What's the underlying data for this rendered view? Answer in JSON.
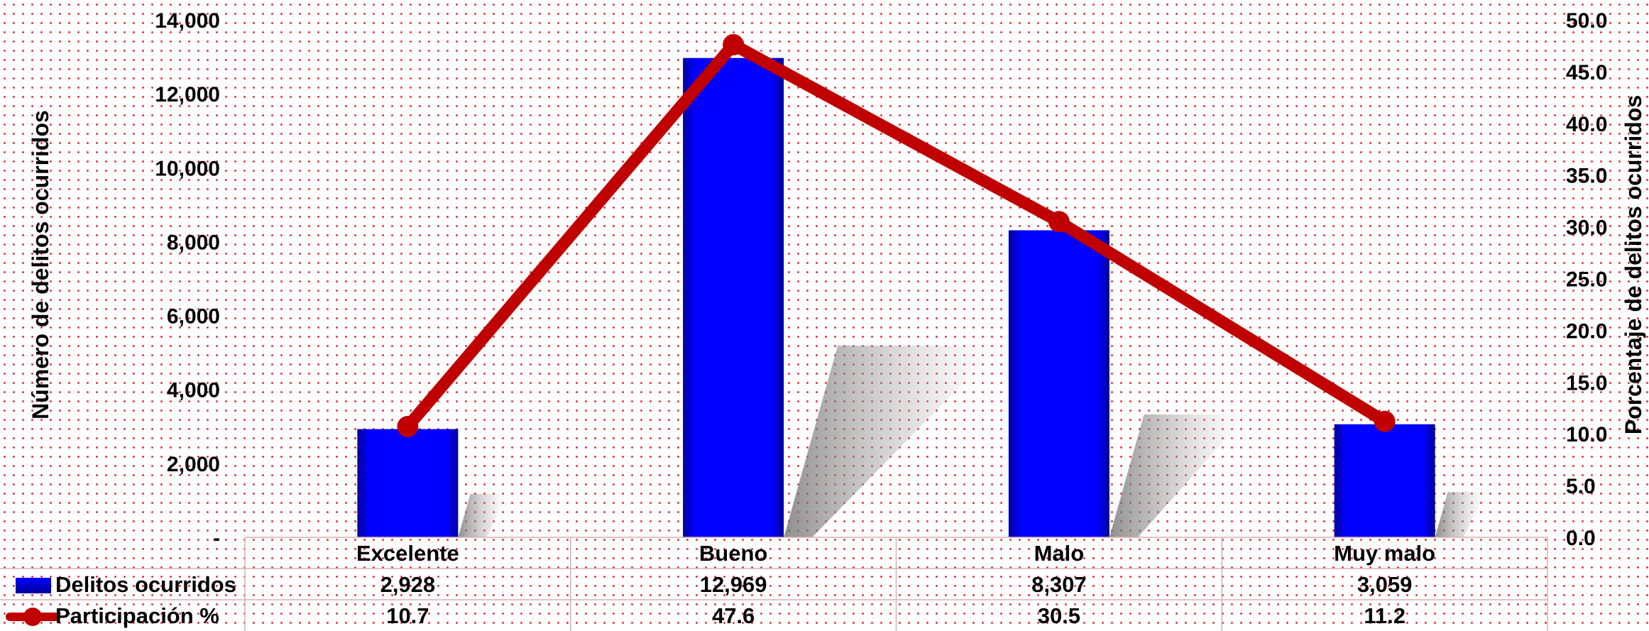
{
  "chart_data": {
    "type": "bar",
    "categories": [
      "Excelente",
      "Bueno",
      "Malo",
      "Muy malo"
    ],
    "series": [
      {
        "name": "Delitos ocurridos",
        "type": "bar",
        "axis": "left",
        "color": "#0000ff",
        "values": [
          2928,
          12969,
          8307,
          3059
        ]
      },
      {
        "name": "Participación %",
        "type": "line",
        "axis": "right",
        "color": "#c00000",
        "values": [
          10.7,
          47.6,
          30.5,
          11.2
        ]
      }
    ],
    "ylabel": "Número de delitos ocurridos",
    "y2label": "Porcentaje de delitos ocurridos",
    "ylim": [
      0,
      14000
    ],
    "y2lim": [
      0,
      50
    ],
    "yticks": [
      "-",
      "2,000",
      "4,000",
      "6,000",
      "8,000",
      "10,000",
      "12,000",
      "14,000"
    ],
    "y2ticks": [
      "0.0",
      "5.0",
      "10.0",
      "15.0",
      "20.0",
      "25.0",
      "30.0",
      "35.0",
      "40.0",
      "45.0",
      "50.0"
    ],
    "data_table": {
      "rows": [
        {
          "label": "Delitos ocurridos",
          "values": [
            "2,928",
            "12,969",
            "8,307",
            "3,059"
          ]
        },
        {
          "label": "Participación %",
          "values": [
            "10.7",
            "47.6",
            "30.5",
            "11.2"
          ]
        }
      ]
    },
    "grid": false,
    "background": "red dotted pattern"
  }
}
